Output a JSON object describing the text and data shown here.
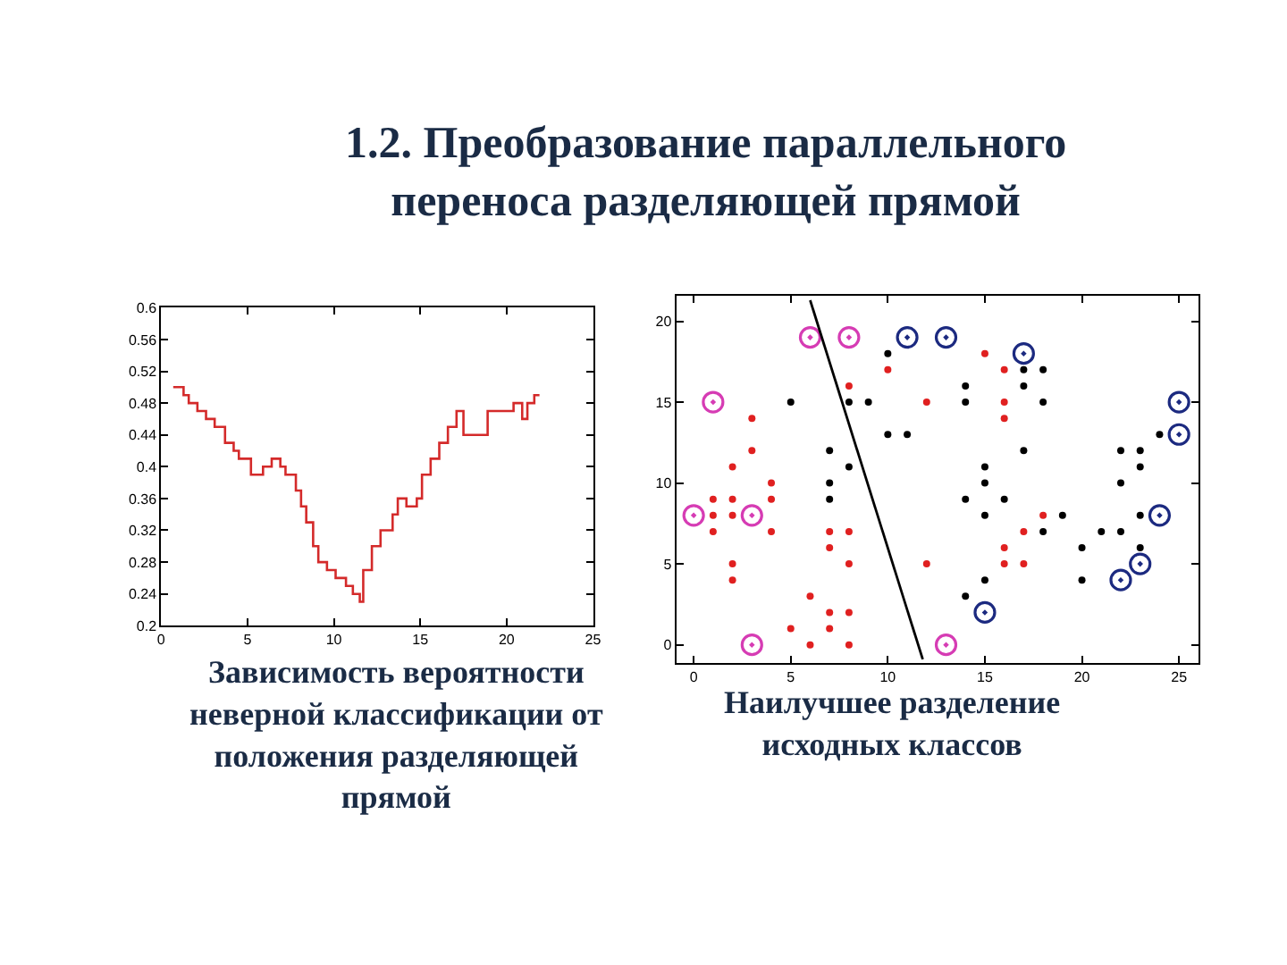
{
  "chart_data": [
    {
      "type": "step",
      "title": "1.2. Преобразование параллельного\nпереноса разделяющей прямой",
      "annotations": [
        "Зависимость вероятности\nневерной классификации от\nположения разделяющей\nпрямой"
      ],
      "color": "#d42a2a",
      "x": [
        0.7,
        1.3,
        1.6,
        2.1,
        2.6,
        3.1,
        3.7,
        4.2,
        4.5,
        5.2,
        5.9,
        6.4,
        6.9,
        7.2,
        7.8,
        8.1,
        8.4,
        8.8,
        9.1,
        9.6,
        10.1,
        10.7,
        11.1,
        11.5,
        11.7,
        12.2,
        12.7,
        13.4,
        13.7,
        14.2,
        14.8,
        15.1,
        15.6,
        16.1,
        16.6,
        17.1,
        17.5,
        18.9,
        20.4,
        20.9,
        21.2,
        21.6,
        21.9
      ],
      "values": [
        0.5,
        0.49,
        0.48,
        0.47,
        0.46,
        0.45,
        0.43,
        0.42,
        0.41,
        0.39,
        0.4,
        0.41,
        0.4,
        0.39,
        0.37,
        0.35,
        0.33,
        0.3,
        0.28,
        0.27,
        0.26,
        0.25,
        0.24,
        0.23,
        0.27,
        0.3,
        0.32,
        0.34,
        0.36,
        0.35,
        0.36,
        0.39,
        0.41,
        0.43,
        0.45,
        0.47,
        0.44,
        0.47,
        0.48,
        0.46,
        0.48,
        0.49,
        0.49
      ],
      "xlim": [
        0,
        25
      ],
      "xticks": [
        0,
        5,
        10,
        15,
        20,
        25
      ],
      "ylim": [
        0.2,
        0.6
      ],
      "yticks": [
        0.2,
        0.24,
        0.28,
        0.32,
        0.36,
        0.4,
        0.44,
        0.48,
        0.52,
        0.56,
        0.6
      ],
      "grid": false
    },
    {
      "type": "scatter",
      "annotations": [
        "Наилучшее разделение\nисходных классов"
      ],
      "xlim": [
        -0.9,
        26
      ],
      "xticks": [
        0,
        5,
        10,
        15,
        20,
        25
      ],
      "ylim": [
        -1.1,
        21.6
      ],
      "yticks": [
        0,
        5,
        10,
        15,
        20
      ],
      "grid": false,
      "series": [
        {
          "color": "#e02020",
          "marker": "circle",
          "x": [
            15,
            10,
            16,
            8,
            12,
            16,
            3,
            16,
            3,
            2,
            4,
            1,
            2,
            4,
            1,
            2,
            18,
            1,
            4,
            7,
            8,
            17,
            7,
            16,
            2,
            8,
            12,
            16,
            17,
            2,
            6,
            7,
            8,
            5,
            7,
            6,
            8
          ],
          "values": [
            18,
            17,
            17,
            16,
            15,
            15,
            14,
            14,
            12,
            11,
            10,
            9,
            9,
            9,
            8,
            8,
            8,
            7,
            7,
            7,
            7,
            7,
            6,
            6,
            5,
            5,
            5,
            5,
            5,
            4,
            3,
            2,
            2,
            1,
            1,
            0,
            0
          ]
        },
        {
          "color": "#000000",
          "marker": "circle",
          "x": [
            10,
            17,
            18,
            14,
            17,
            5,
            8,
            9,
            14,
            18,
            10,
            11,
            24,
            7,
            17,
            22,
            23,
            8,
            15,
            23,
            7,
            15,
            22,
            7,
            14,
            16,
            15,
            19,
            23,
            18,
            21,
            22,
            20,
            23,
            15,
            20,
            14
          ],
          "values": [
            18,
            17,
            17,
            16,
            16,
            15,
            15,
            15,
            15,
            15,
            13,
            13,
            13,
            12,
            12,
            12,
            12,
            11,
            11,
            11,
            10,
            10,
            10,
            9,
            9,
            9,
            8,
            8,
            8,
            7,
            7,
            7,
            6,
            6,
            4,
            4,
            3
          ]
        },
        {
          "color": "#d63cb4",
          "marker": "circle-open-dot",
          "x": [
            6,
            8,
            1,
            0,
            3,
            3,
            13
          ],
          "values": [
            19,
            19,
            15,
            8,
            8,
            0,
            0
          ]
        },
        {
          "color": "#1c2a80",
          "marker": "circle-open-dot",
          "x": [
            11,
            13,
            17,
            25,
            25,
            24,
            23,
            22,
            15
          ],
          "values": [
            19,
            19,
            18,
            15,
            13,
            8,
            5,
            4,
            2
          ]
        },
        {
          "type": "line",
          "color": "#000000",
          "marker": "none",
          "x": [
            6.0,
            11.8
          ],
          "values": [
            21.3,
            -0.9
          ]
        }
      ]
    }
  ]
}
